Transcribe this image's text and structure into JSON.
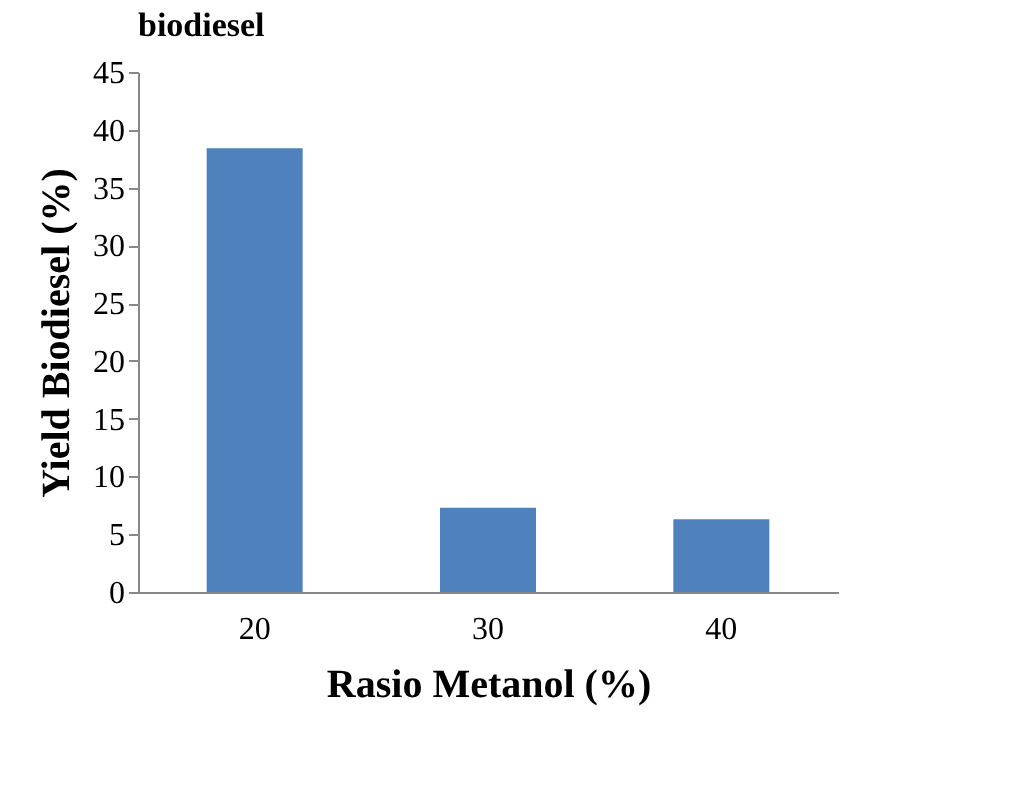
{
  "chart_data": {
    "type": "bar",
    "title": "biodiesel",
    "xlabel": "Rasio Metanol (%)",
    "ylabel": "Yield Biodiesel (%)",
    "categories": [
      "20",
      "30",
      "40"
    ],
    "values": [
      38.4,
      7.3,
      6.3
    ],
    "color": "#4f81bd",
    "ylim": [
      0,
      45
    ],
    "yticks": [
      0,
      5,
      10,
      15,
      20,
      25,
      30,
      35,
      40,
      45
    ],
    "grid": false
  }
}
